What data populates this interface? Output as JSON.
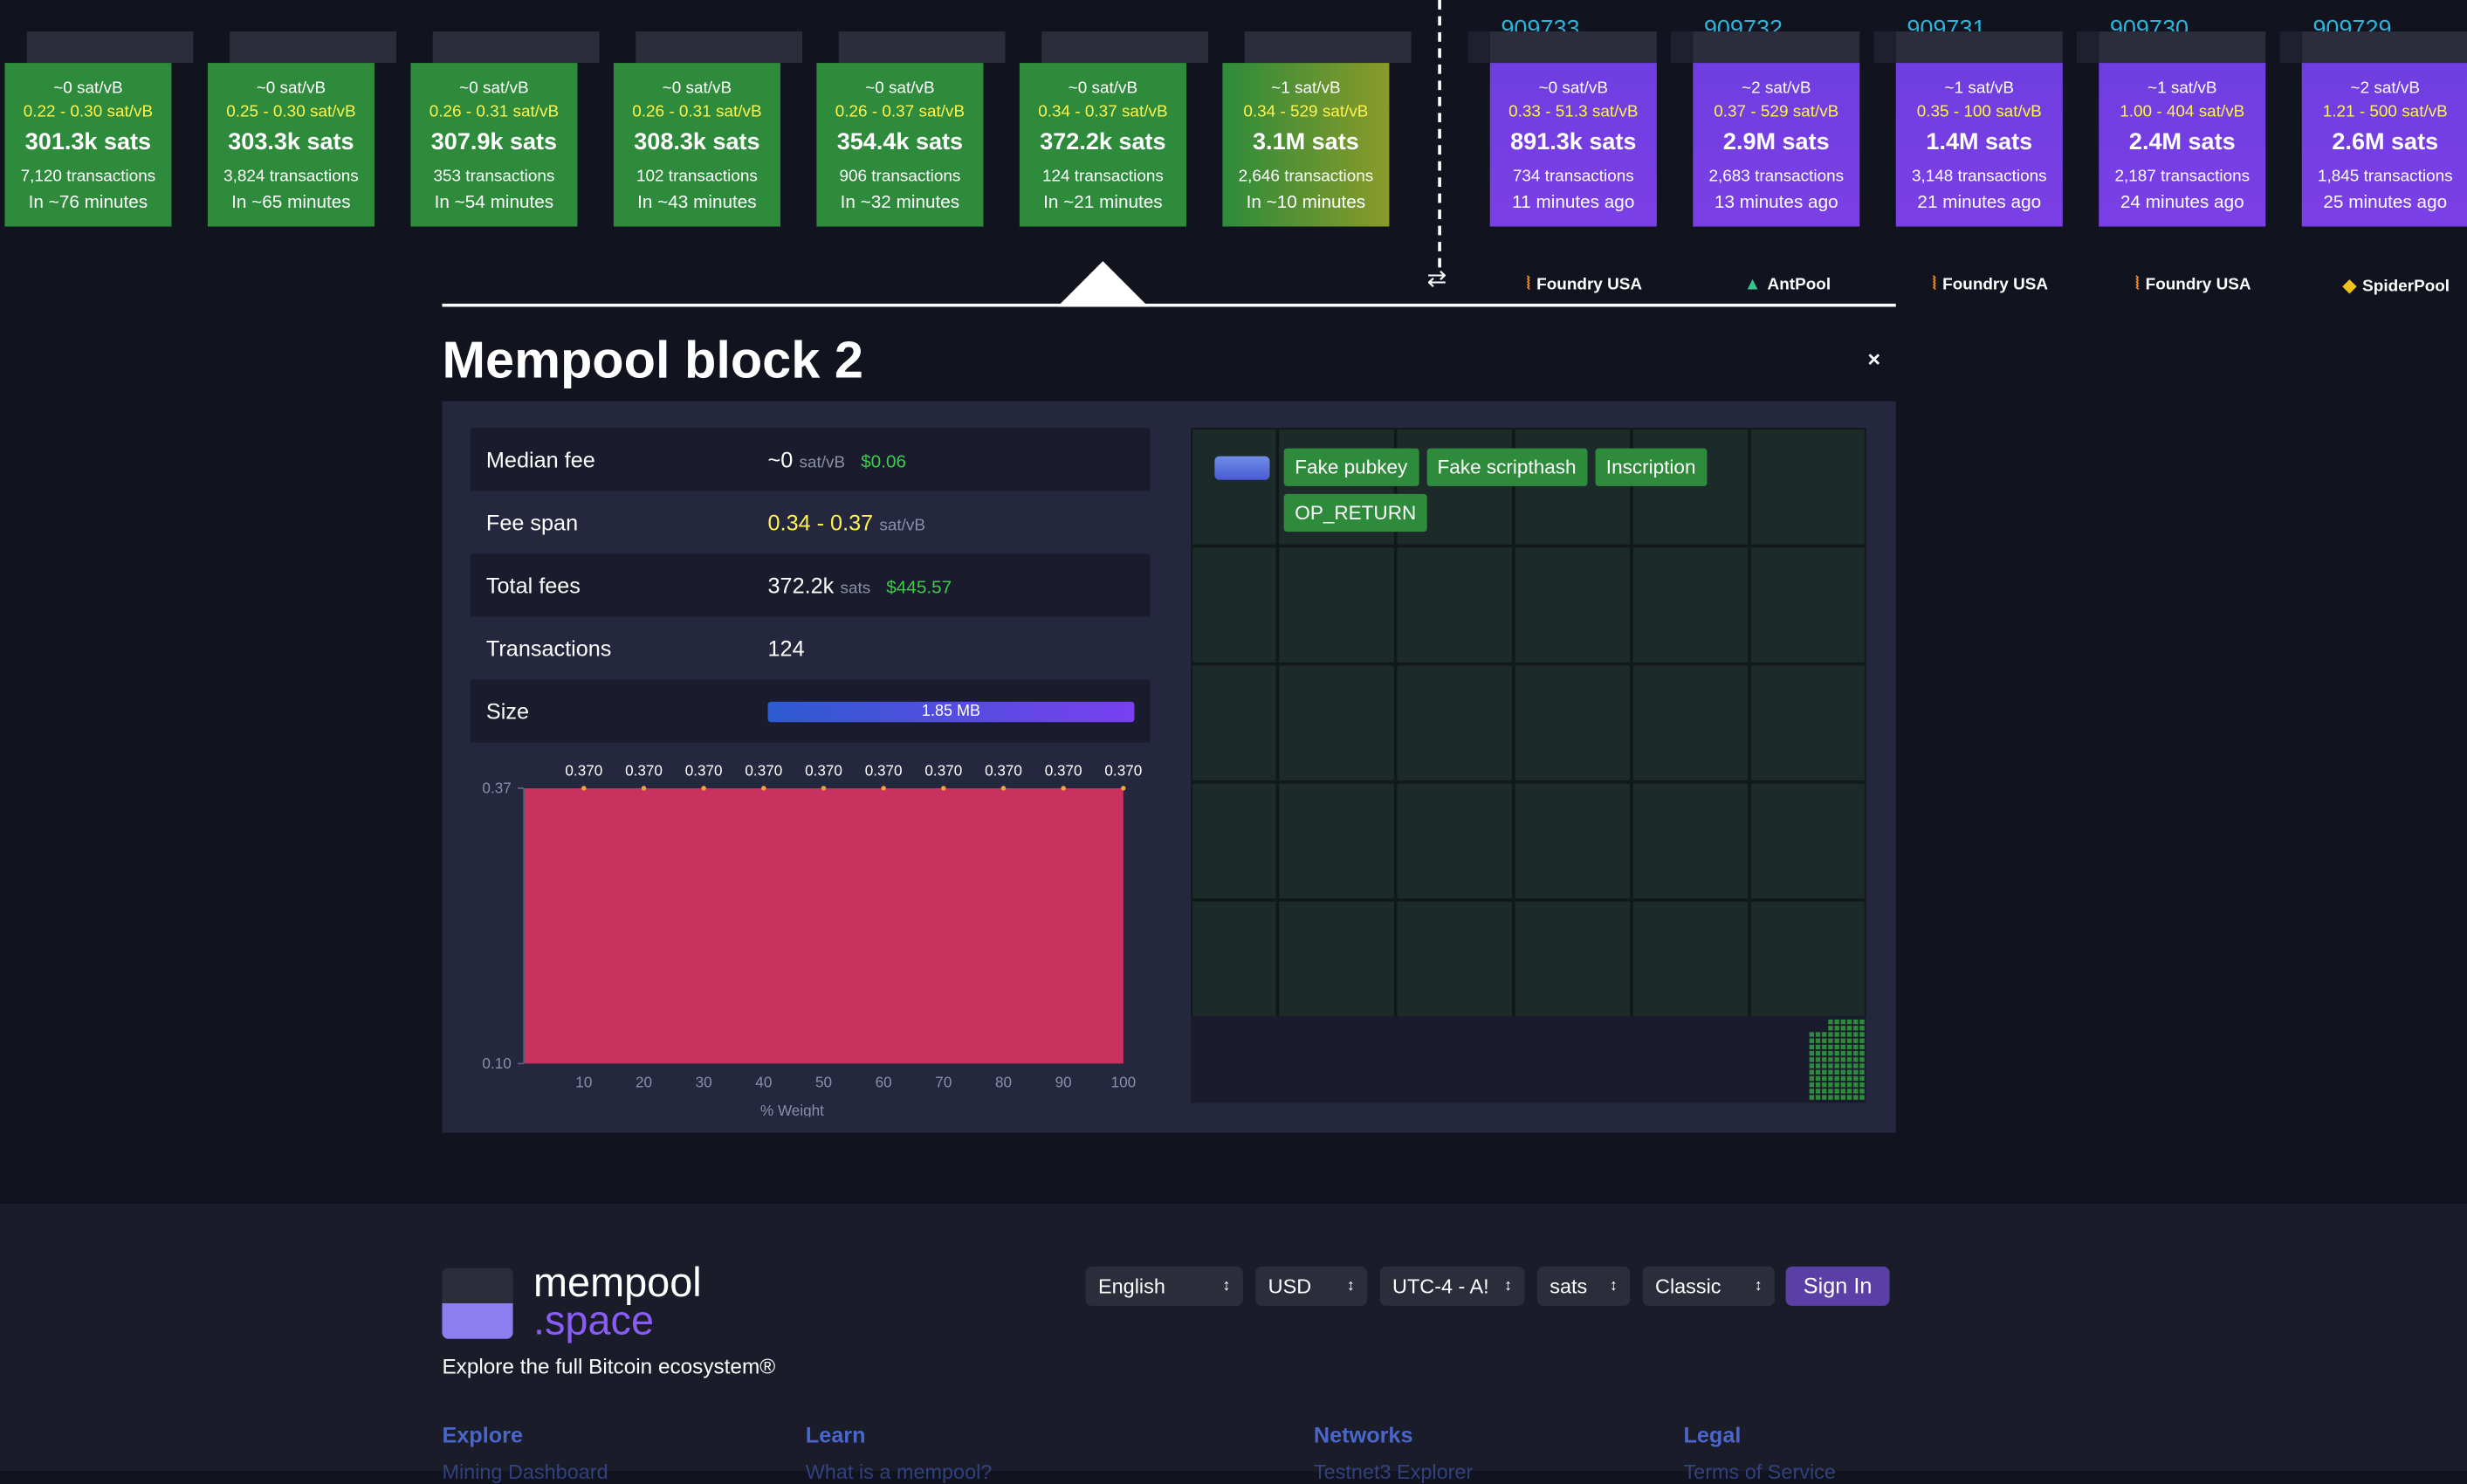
{
  "mempool_blocks": [
    {
      "fee": "~0 sat/vB",
      "range": "0.22 - 0.30 sat/vB",
      "total": "301.3k sats",
      "txs": "7,120 transactions",
      "eta": "In ~76 minutes"
    },
    {
      "fee": "~0 sat/vB",
      "range": "0.25 - 0.30 sat/vB",
      "total": "303.3k sats",
      "txs": "3,824 transactions",
      "eta": "In ~65 minutes"
    },
    {
      "fee": "~0 sat/vB",
      "range": "0.26 - 0.31 sat/vB",
      "total": "307.9k sats",
      "txs": "353 transactions",
      "eta": "In ~54 minutes"
    },
    {
      "fee": "~0 sat/vB",
      "range": "0.26 - 0.31 sat/vB",
      "total": "308.3k sats",
      "txs": "102 transactions",
      "eta": "In ~43 minutes"
    },
    {
      "fee": "~0 sat/vB",
      "range": "0.26 - 0.37 sat/vB",
      "total": "354.4k sats",
      "txs": "906 transactions",
      "eta": "In ~32 minutes"
    },
    {
      "fee": "~0 sat/vB",
      "range": "0.34 - 0.37 sat/vB",
      "total": "372.2k sats",
      "txs": "124 transactions",
      "eta": "In ~21 minutes"
    },
    {
      "fee": "~1 sat/vB",
      "range": "0.34 - 529 sat/vB",
      "total": "3.1M sats",
      "txs": "2,646 transactions",
      "eta": "In ~10 minutes"
    }
  ],
  "confirmed_blocks": [
    {
      "height": "909733",
      "fee": "~0 sat/vB",
      "range": "0.33 - 51.3 sat/vB",
      "total": "891.3k sats",
      "txs": "734 transactions",
      "ago": "11 minutes ago",
      "pool": "Foundry USA"
    },
    {
      "height": "909732",
      "fee": "~2 sat/vB",
      "range": "0.37 - 529 sat/vB",
      "total": "2.9M sats",
      "txs": "2,683 transactions",
      "ago": "13 minutes ago",
      "pool": "AntPool"
    },
    {
      "height": "909731",
      "fee": "~1 sat/vB",
      "range": "0.35 - 100 sat/vB",
      "total": "1.4M sats",
      "txs": "3,148 transactions",
      "ago": "21 minutes ago",
      "pool": "Foundry USA"
    },
    {
      "height": "909730",
      "fee": "~1 sat/vB",
      "range": "1.00 - 404 sat/vB",
      "total": "2.4M sats",
      "txs": "2,187 transactions",
      "ago": "24 minutes ago",
      "pool": "Foundry USA"
    },
    {
      "height": "909729",
      "fee": "~2 sat/vB",
      "range": "1.21 - 500 sat/vB",
      "total": "2.6M sats",
      "txs": "1,845 transactions",
      "ago": "25 minutes ago",
      "pool": "SpiderPool"
    }
  ],
  "swap_icon": "swap-icon",
  "detail": {
    "title": "Mempool block 2",
    "close": "×",
    "median_label": "Median fee",
    "median_value": "~0",
    "median_unit": "sat/vB",
    "median_usd": "$0.06",
    "span_label": "Fee span",
    "span_value": "0.34 - 0.37",
    "span_unit": "sat/vB",
    "total_label": "Total fees",
    "total_value": "372.2k",
    "total_unit": "sats",
    "total_usd": "$445.57",
    "tx_label": "Transactions",
    "tx_value": "124",
    "size_label": "Size",
    "size_value": "1.85 MB",
    "size_fraction": 1.0,
    "tags": [
      "Fake pubkey",
      "Fake scripthash",
      "Inscription",
      "OP_RETURN"
    ]
  },
  "chart_data": {
    "type": "area",
    "x": [
      10,
      20,
      30,
      40,
      50,
      60,
      70,
      80,
      90,
      100
    ],
    "values": [
      0.37,
      0.37,
      0.37,
      0.37,
      0.37,
      0.37,
      0.37,
      0.37,
      0.37,
      0.37
    ],
    "data_labels": [
      "0.370",
      "0.370",
      "0.370",
      "0.370",
      "0.370",
      "0.370",
      "0.370",
      "0.370",
      "0.370",
      "0.370"
    ],
    "xlabel": "% Weight",
    "ylabel": "",
    "y_ticks": [
      "0.37",
      "0.10"
    ],
    "ylim": [
      0.1,
      0.37
    ],
    "xlim": [
      0,
      100
    ],
    "color": "#c9325f"
  },
  "footer": {
    "logo1": "mempool",
    "logo2": ".space",
    "tagline": "Explore the full Bitcoin ecosystem®",
    "language": "English",
    "currency": "USD",
    "timezone": "UTC-4 - A!",
    "unit": "sats",
    "theme": "Classic",
    "signin": "Sign In",
    "cols": [
      {
        "head": "Explore",
        "link": "Mining Dashboard"
      },
      {
        "head": "Learn",
        "link": "What is a mempool?"
      },
      {
        "head": "Networks",
        "link": "Testnet3 Explorer"
      },
      {
        "head": "Legal",
        "link": "Terms of Service"
      }
    ]
  },
  "colors": {
    "mempool_block": "#2e8b3b",
    "confirmed_block": "#7b3fe6",
    "fee_range": "#fff34d",
    "accent": "#8a5cf6",
    "usd": "#3bcc49"
  }
}
